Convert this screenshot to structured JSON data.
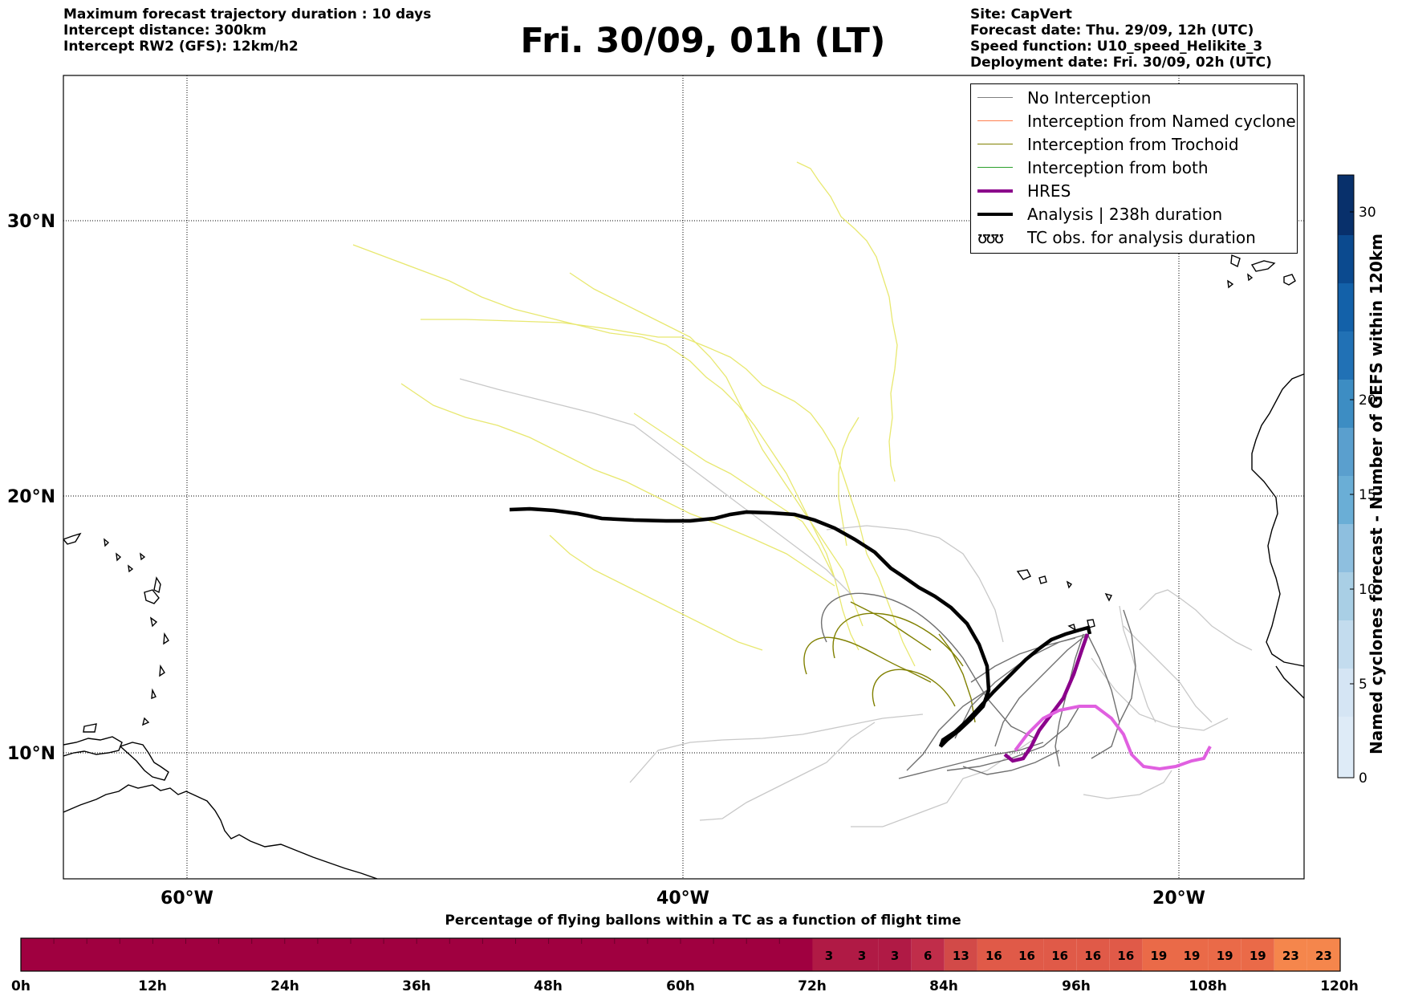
{
  "header": {
    "left": [
      "Maximum forecast trajectory duration : 10 days",
      "Intercept distance: 300km",
      "Intercept RW2 (GFS):  12km/h2"
    ],
    "title": "Fri. 30/09, 01h (LT)",
    "right": [
      "Site: CapVert",
      "Forecast date: Thu. 29/09, 12h (UTC)",
      "Speed function: U10_speed_Helikite_3",
      "Deployment date: Fri. 30/09, 02h (UTC)"
    ]
  },
  "map": {
    "lat_labels": [
      "30°N",
      "20°N",
      "10°N"
    ],
    "lon_labels": [
      "60°W",
      "40°W",
      "20°W"
    ]
  },
  "legend": {
    "items": [
      {
        "label": "No Interception",
        "color": "#808080"
      },
      {
        "label": "Interception from Named cyclone",
        "color": "#ff7f50"
      },
      {
        "label": "Interception from Trochoid",
        "color": "#808000"
      },
      {
        "label": "Interception from both",
        "color": "#2ca02c"
      },
      {
        "label": "HRES",
        "color": "#8b008b"
      },
      {
        "label": "Analysis | 238h duration",
        "color": "#000000"
      },
      {
        "label": "TC obs. for analysis duration",
        "symbol": "ʊʊʊ"
      }
    ]
  },
  "colorbar": {
    "title": "Named cyclones forecast - Number of GEFS within 120km",
    "ticks": [
      "0",
      "5",
      "10",
      "15",
      "20",
      "30"
    ]
  },
  "bottom_bar": {
    "caption": "Percentage of flying ballons within a TC as a function of flight time",
    "time_labels": [
      "0h",
      "12h",
      "24h",
      "36h",
      "48h",
      "60h",
      "72h",
      "84h",
      "96h",
      "108h",
      "120h"
    ],
    "cells": [
      "3",
      "3",
      "3",
      "6",
      "13",
      "16",
      "16",
      "16",
      "16",
      "16",
      "19",
      "19",
      "19",
      "19",
      "23",
      "23"
    ]
  },
  "colors": {
    "hres": "#e060e0",
    "hres_dark": "#8b008b",
    "analysis": "#000000",
    "no_interception_light": "#c8c8c8",
    "no_interception": "#707070",
    "trochoid": "#808000",
    "trochoid_light": "#e8e870",
    "bar_base": "#a00040"
  }
}
